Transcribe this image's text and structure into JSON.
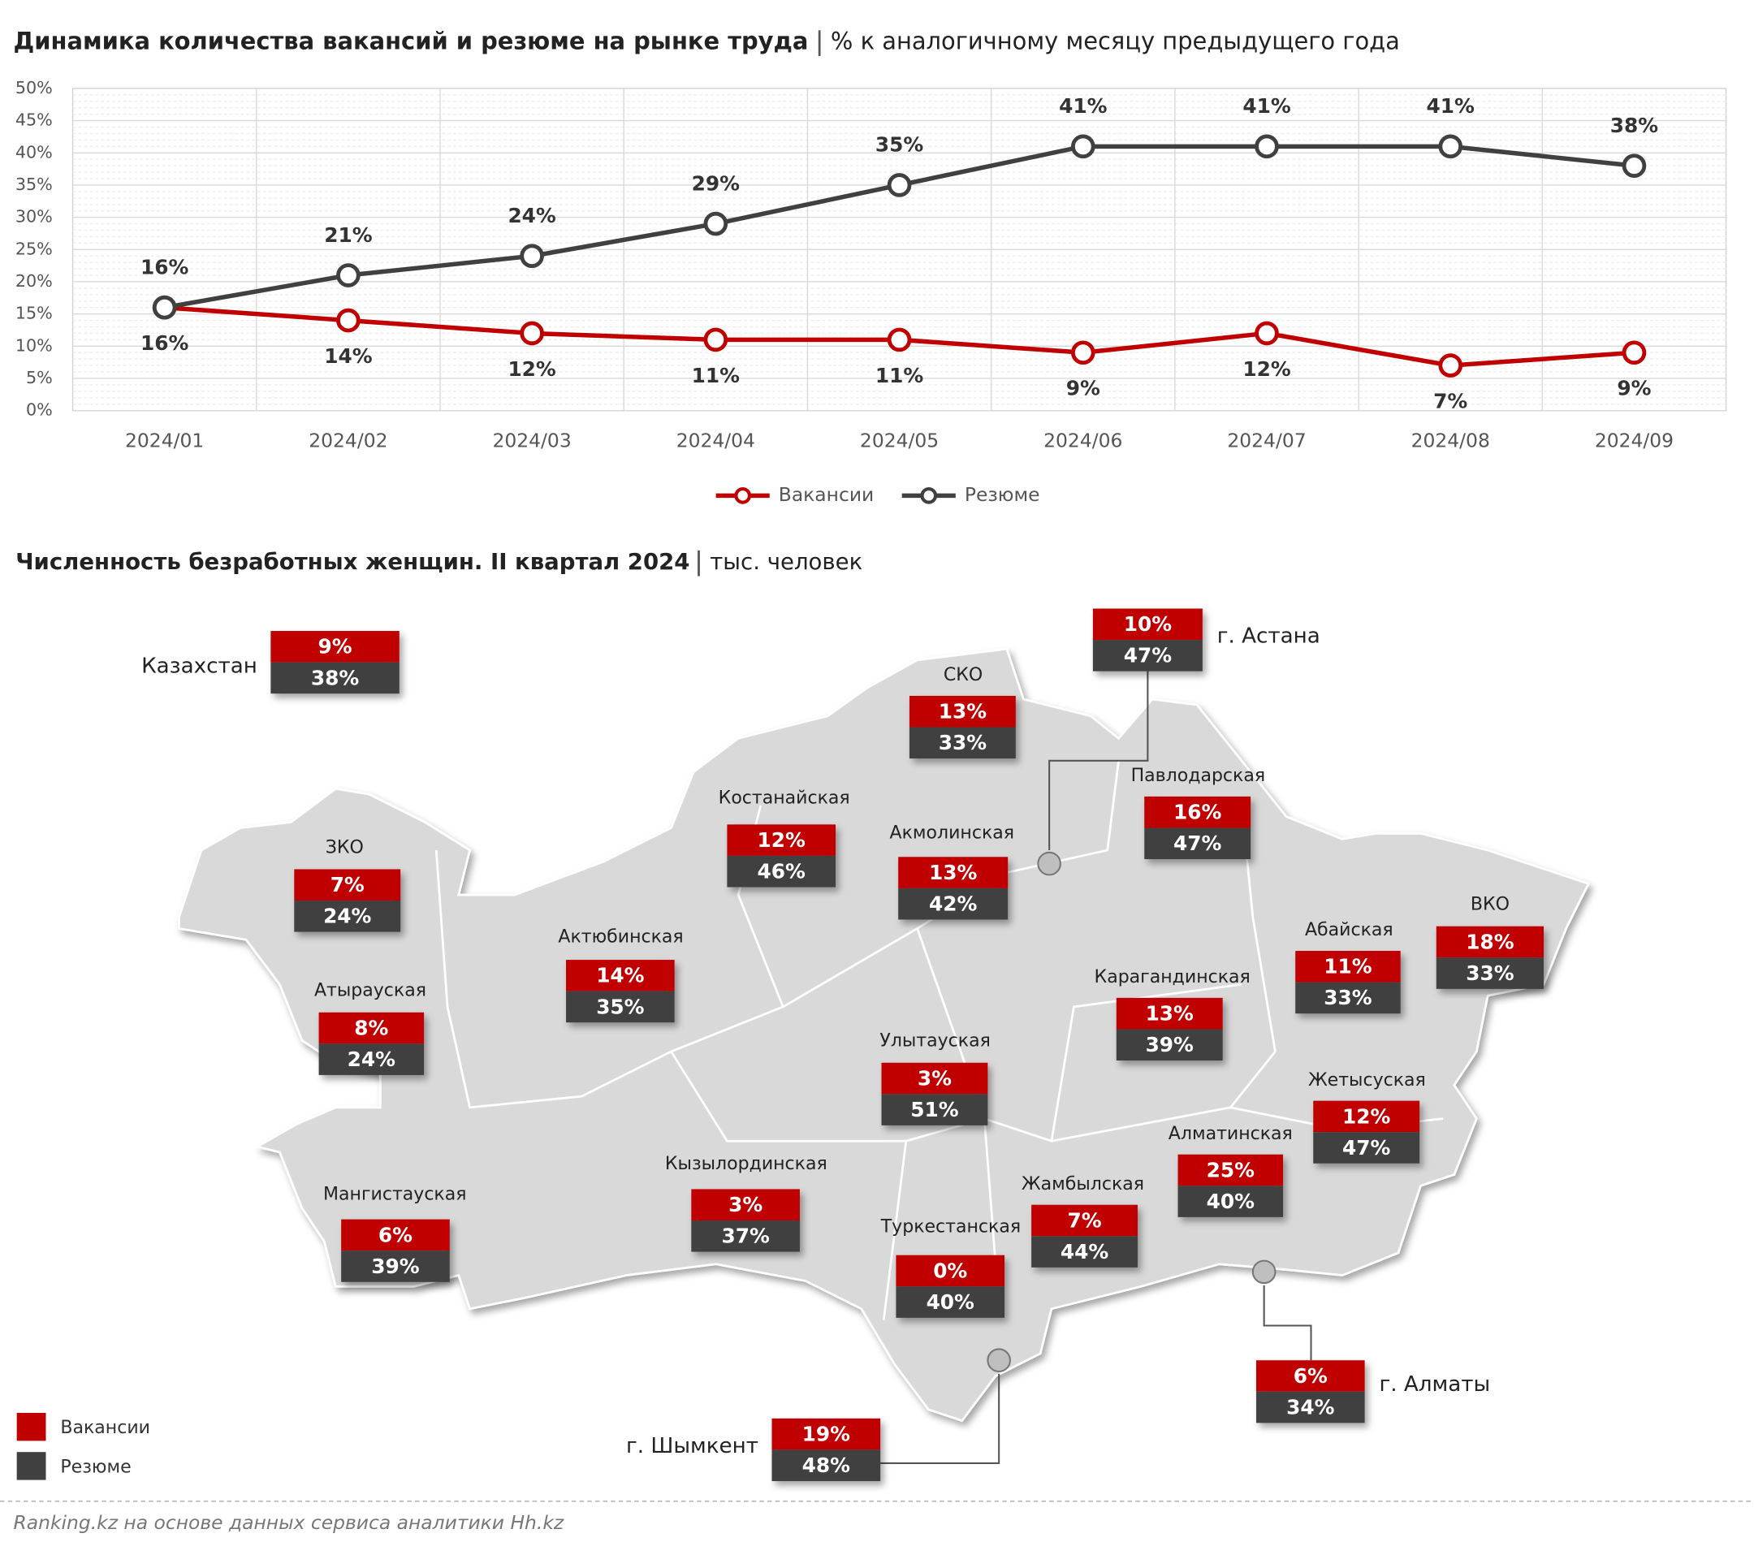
{
  "chart_data": {
    "type": "line",
    "title": "Динамика количества вакансий и резюме на рынке труда",
    "subtitle": "% к аналогичному месяцу предыдущего года",
    "categories": [
      "2024/01",
      "2024/02",
      "2024/03",
      "2024/04",
      "2024/05",
      "2024/06",
      "2024/07",
      "2024/08",
      "2024/09"
    ],
    "series": [
      {
        "name": "Вакансии",
        "color": "#c00000",
        "values": [
          16,
          14,
          12,
          11,
          11,
          9,
          12,
          7,
          9
        ],
        "value_labels": [
          "16%",
          "14%",
          "12%",
          "11%",
          "11%",
          "9%",
          "12%",
          "7%",
          "9%"
        ]
      },
      {
        "name": "Резюме",
        "color": "#404040",
        "values": [
          16,
          21,
          24,
          29,
          35,
          41,
          41,
          41,
          38
        ],
        "value_labels": [
          "16%",
          "21%",
          "24%",
          "29%",
          "35%",
          "41%",
          "41%",
          "41%",
          "38%"
        ]
      }
    ],
    "ylim": [
      0,
      50
    ],
    "yticks": [
      {
        "value": 0,
        "label": "0%"
      },
      {
        "value": 5,
        "label": "5%"
      },
      {
        "value": 10,
        "label": "10%"
      },
      {
        "value": 15,
        "label": "15%"
      },
      {
        "value": 20,
        "label": "20%"
      },
      {
        "value": 25,
        "label": "25%"
      },
      {
        "value": 30,
        "label": "30%"
      },
      {
        "value": 35,
        "label": "35%"
      },
      {
        "value": 40,
        "label": "40%"
      },
      {
        "value": 45,
        "label": "45%"
      },
      {
        "value": 50,
        "label": "50%"
      }
    ],
    "grid": true,
    "legend": "bottom"
  },
  "map": {
    "title": "Численность безработных женщин. II квартал 2024",
    "subtitle": "тыс. человек",
    "legend": [
      {
        "label": "Вакансии",
        "color": "#c00000"
      },
      {
        "label": "Резюме",
        "color": "#404040"
      }
    ],
    "regions": [
      {
        "name": "Казахстан",
        "vacancies": "9%",
        "resumes": "38%"
      },
      {
        "name": "СКО",
        "vacancies": "13%",
        "resumes": "33%"
      },
      {
        "name": "г. Астана",
        "vacancies": "10%",
        "resumes": "47%"
      },
      {
        "name": "Костанайская",
        "vacancies": "12%",
        "resumes": "46%"
      },
      {
        "name": "Акмолинская",
        "vacancies": "13%",
        "resumes": "42%"
      },
      {
        "name": "Павлодарская",
        "vacancies": "16%",
        "resumes": "47%"
      },
      {
        "name": "ЗКО",
        "vacancies": "7%",
        "resumes": "24%"
      },
      {
        "name": "Актюбинская",
        "vacancies": "14%",
        "resumes": "35%"
      },
      {
        "name": "Абайская",
        "vacancies": "11%",
        "resumes": "33%"
      },
      {
        "name": "ВКО",
        "vacancies": "18%",
        "resumes": "33%"
      },
      {
        "name": "Атырауская",
        "vacancies": "8%",
        "resumes": "24%"
      },
      {
        "name": "Карагандинская",
        "vacancies": "13%",
        "resumes": "39%"
      },
      {
        "name": "Улытауская",
        "vacancies": "3%",
        "resumes": "51%"
      },
      {
        "name": "Жетысуская",
        "vacancies": "12%",
        "resumes": "47%"
      },
      {
        "name": "Алматинская",
        "vacancies": "25%",
        "resumes": "40%"
      },
      {
        "name": "Кызылординская",
        "vacancies": "3%",
        "resumes": "37%"
      },
      {
        "name": "Жамбылская",
        "vacancies": "7%",
        "resumes": "44%"
      },
      {
        "name": "Мангистауская",
        "vacancies": "6%",
        "resumes": "39%"
      },
      {
        "name": "Туркестанская",
        "vacancies": "0%",
        "resumes": "40%"
      },
      {
        "name": "г. Алматы",
        "vacancies": "6%",
        "resumes": "34%"
      },
      {
        "name": "г. Шымкент",
        "vacancies": "19%",
        "resumes": "48%"
      }
    ]
  },
  "source": "Ranking.kz на основе данных сервиса аналитики Hh.kz"
}
